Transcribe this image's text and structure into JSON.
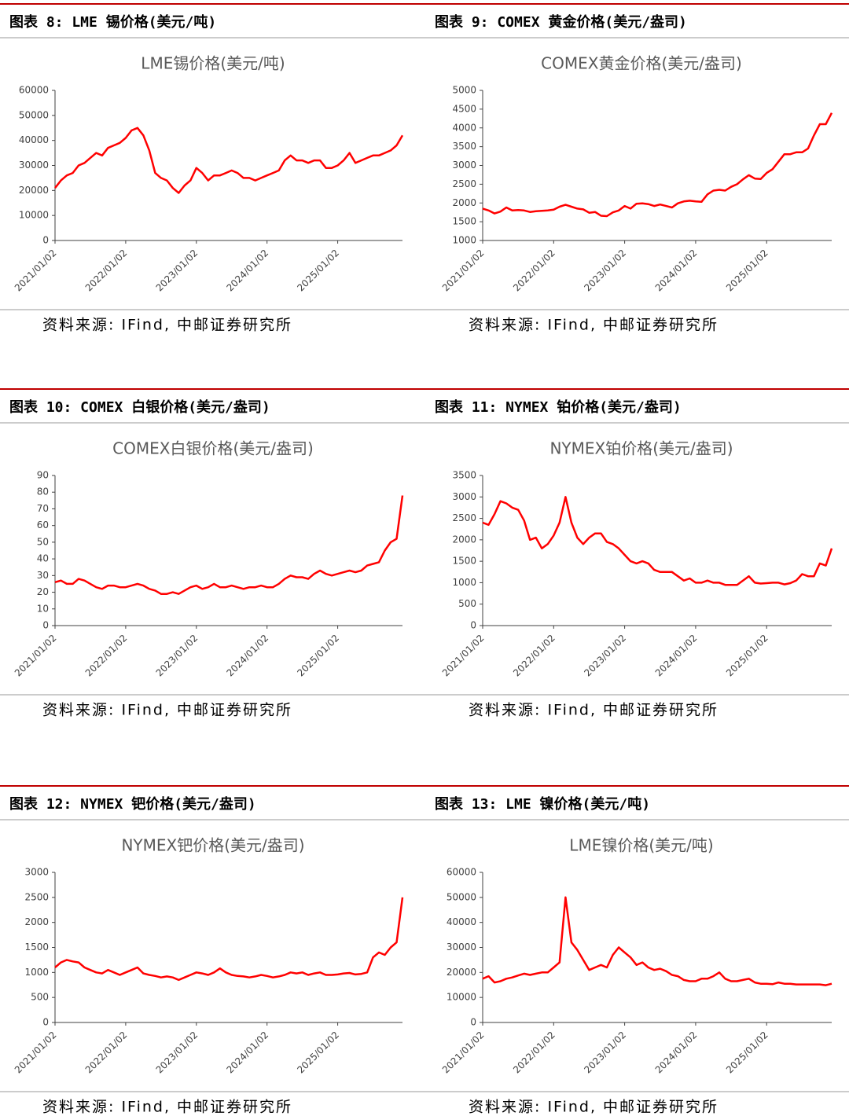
{
  "chart_data": [
    {
      "type": "line",
      "heading": "图表 8: LME 锡价格(美元/吨)",
      "title": "LME锡价格(美元/吨)",
      "source": "资料来源: IFind, 中邮证券研究所",
      "color": "#ff0000",
      "x": [
        "2021-01",
        "2021-02",
        "2021-03",
        "2021-04",
        "2021-05",
        "2021-06",
        "2021-07",
        "2021-08",
        "2021-09",
        "2021-10",
        "2021-11",
        "2021-12",
        "2022-01",
        "2022-02",
        "2022-03",
        "2022-04",
        "2022-05",
        "2022-06",
        "2022-07",
        "2022-08",
        "2022-09",
        "2022-10",
        "2022-11",
        "2022-12",
        "2023-01",
        "2023-02",
        "2023-03",
        "2023-04",
        "2023-05",
        "2023-06",
        "2023-07",
        "2023-08",
        "2023-09",
        "2023-10",
        "2023-11",
        "2023-12",
        "2024-01",
        "2024-02",
        "2024-03",
        "2024-04",
        "2024-05",
        "2024-06",
        "2024-07",
        "2024-08",
        "2024-09",
        "2024-10",
        "2024-11",
        "2024-12",
        "2025-01",
        "2025-02",
        "2025-03",
        "2025-04",
        "2025-05",
        "2025-06",
        "2025-07",
        "2025-08",
        "2025-09",
        "2025-10",
        "2025-11",
        "2025-12"
      ],
      "values": [
        21000,
        24000,
        26000,
        27000,
        30000,
        31000,
        33000,
        35000,
        34000,
        37000,
        38000,
        39000,
        41000,
        44000,
        45000,
        42000,
        36000,
        27000,
        25000,
        24000,
        21000,
        19000,
        22000,
        24000,
        29000,
        27000,
        24000,
        26000,
        26000,
        27000,
        28000,
        27000,
        25000,
        25000,
        24000,
        25000,
        26000,
        27000,
        28000,
        32000,
        34000,
        32000,
        32000,
        31000,
        32000,
        32000,
        29000,
        29000,
        30000,
        32000,
        35000,
        31000,
        32000,
        33000,
        34000,
        34000,
        35000,
        36000,
        38000,
        42000
      ],
      "xlim": [
        "2021-01",
        "2025-12"
      ],
      "xticks": [
        {
          "value": "2021-01",
          "label": "2021/01/02"
        },
        {
          "value": "2022-01",
          "label": "2022/01/02"
        },
        {
          "value": "2023-01",
          "label": "2023/01/02"
        },
        {
          "value": "2024-01",
          "label": "2024/01/02"
        },
        {
          "value": "2025-01",
          "label": "2025/01/02"
        }
      ],
      "ylim": [
        0,
        60000
      ],
      "yticks": [
        0,
        10000,
        20000,
        30000,
        40000,
        50000,
        60000
      ]
    },
    {
      "type": "line",
      "heading": "图表 9: COMEX 黄金价格(美元/盎司)",
      "title": "COMEX黄金价格(美元/盎司)",
      "source": "资料来源: IFind, 中邮证券研究所",
      "color": "#ff0000",
      "x": [
        "2021-01",
        "2021-02",
        "2021-03",
        "2021-04",
        "2021-05",
        "2021-06",
        "2021-07",
        "2021-08",
        "2021-09",
        "2021-10",
        "2021-11",
        "2021-12",
        "2022-01",
        "2022-02",
        "2022-03",
        "2022-04",
        "2022-05",
        "2022-06",
        "2022-07",
        "2022-08",
        "2022-09",
        "2022-10",
        "2022-11",
        "2022-12",
        "2023-01",
        "2023-02",
        "2023-03",
        "2023-04",
        "2023-05",
        "2023-06",
        "2023-07",
        "2023-08",
        "2023-09",
        "2023-10",
        "2023-11",
        "2023-12",
        "2024-01",
        "2024-02",
        "2024-03",
        "2024-04",
        "2024-05",
        "2024-06",
        "2024-07",
        "2024-08",
        "2024-09",
        "2024-10",
        "2024-11",
        "2024-12",
        "2025-01",
        "2025-02",
        "2025-03",
        "2025-04",
        "2025-05",
        "2025-06",
        "2025-07",
        "2025-08",
        "2025-09",
        "2025-10",
        "2025-11",
        "2025-12"
      ],
      "values": [
        1850,
        1800,
        1720,
        1770,
        1880,
        1800,
        1810,
        1800,
        1760,
        1780,
        1790,
        1800,
        1820,
        1900,
        1950,
        1900,
        1850,
        1830,
        1740,
        1760,
        1660,
        1650,
        1750,
        1800,
        1920,
        1850,
        1980,
        1990,
        1970,
        1920,
        1960,
        1920,
        1880,
        1990,
        2040,
        2060,
        2040,
        2030,
        2230,
        2330,
        2350,
        2330,
        2430,
        2500,
        2630,
        2740,
        2650,
        2640,
        2800,
        2900,
        3100,
        3300,
        3300,
        3350,
        3350,
        3450,
        3800,
        4100,
        4100,
        4400
      ],
      "xlim": [
        "2021-01",
        "2025-12"
      ],
      "xticks": [
        {
          "value": "2021-01",
          "label": "2021/01/02"
        },
        {
          "value": "2022-01",
          "label": "2022/01/02"
        },
        {
          "value": "2023-01",
          "label": "2023/01/02"
        },
        {
          "value": "2024-01",
          "label": "2024/01/02"
        },
        {
          "value": "2025-01",
          "label": "2025/01/02"
        }
      ],
      "ylim": [
        1000,
        5000
      ],
      "yticks": [
        1000,
        1500,
        2000,
        2500,
        3000,
        3500,
        4000,
        4500,
        5000
      ]
    },
    {
      "type": "line",
      "heading": "图表 10: COMEX 白银价格(美元/盎司)",
      "title": "COMEX白银价格(美元/盎司)",
      "source": "资料来源: IFind, 中邮证券研究所",
      "color": "#ff0000",
      "x": [
        "2021-01",
        "2021-02",
        "2021-03",
        "2021-04",
        "2021-05",
        "2021-06",
        "2021-07",
        "2021-08",
        "2021-09",
        "2021-10",
        "2021-11",
        "2021-12",
        "2022-01",
        "2022-02",
        "2022-03",
        "2022-04",
        "2022-05",
        "2022-06",
        "2022-07",
        "2022-08",
        "2022-09",
        "2022-10",
        "2022-11",
        "2022-12",
        "2023-01",
        "2023-02",
        "2023-03",
        "2023-04",
        "2023-05",
        "2023-06",
        "2023-07",
        "2023-08",
        "2023-09",
        "2023-10",
        "2023-11",
        "2023-12",
        "2024-01",
        "2024-02",
        "2024-03",
        "2024-04",
        "2024-05",
        "2024-06",
        "2024-07",
        "2024-08",
        "2024-09",
        "2024-10",
        "2024-11",
        "2024-12",
        "2025-01",
        "2025-02",
        "2025-03",
        "2025-04",
        "2025-05",
        "2025-06",
        "2025-07",
        "2025-08",
        "2025-09",
        "2025-10",
        "2025-11",
        "2025-12"
      ],
      "values": [
        26,
        27,
        25,
        25,
        28,
        27,
        25,
        23,
        22,
        24,
        24,
        23,
        23,
        24,
        25,
        24,
        22,
        21,
        19,
        19,
        20,
        19,
        21,
        23,
        24,
        22,
        23,
        25,
        23,
        23,
        24,
        23,
        22,
        23,
        23,
        24,
        23,
        23,
        25,
        28,
        30,
        29,
        29,
        28,
        31,
        33,
        31,
        30,
        31,
        32,
        33,
        32,
        33,
        36,
        37,
        38,
        45,
        50,
        52,
        78
      ],
      "xlim": [
        "2021-01",
        "2025-12"
      ],
      "xticks": [
        {
          "value": "2021-01",
          "label": "2021/01/02"
        },
        {
          "value": "2022-01",
          "label": "2022/01/02"
        },
        {
          "value": "2023-01",
          "label": "2023/01/02"
        },
        {
          "value": "2024-01",
          "label": "2024/01/02"
        },
        {
          "value": "2025-01",
          "label": "2025/01/02"
        }
      ],
      "ylim": [
        0,
        90
      ],
      "yticks": [
        0,
        10,
        20,
        30,
        40,
        50,
        60,
        70,
        80,
        90
      ]
    },
    {
      "type": "line",
      "heading": "图表 11: NYMEX 铂价格(美元/盎司)",
      "title": "NYMEX铂价格(美元/盎司)",
      "source": "资料来源: IFind, 中邮证券研究所",
      "color": "#ff0000",
      "x": [
        "2021-01",
        "2021-02",
        "2021-03",
        "2021-04",
        "2021-05",
        "2021-06",
        "2021-07",
        "2021-08",
        "2021-09",
        "2021-10",
        "2021-11",
        "2021-12",
        "2022-01",
        "2022-02",
        "2022-03",
        "2022-04",
        "2022-05",
        "2022-06",
        "2022-07",
        "2022-08",
        "2022-09",
        "2022-10",
        "2022-11",
        "2022-12",
        "2023-01",
        "2023-02",
        "2023-03",
        "2023-04",
        "2023-05",
        "2023-06",
        "2023-07",
        "2023-08",
        "2023-09",
        "2023-10",
        "2023-11",
        "2023-12",
        "2024-01",
        "2024-02",
        "2024-03",
        "2024-04",
        "2024-05",
        "2024-06",
        "2024-07",
        "2024-08",
        "2024-09",
        "2024-10",
        "2024-11",
        "2024-12",
        "2025-01",
        "2025-02",
        "2025-03",
        "2025-04",
        "2025-05",
        "2025-06",
        "2025-07",
        "2025-08",
        "2025-09",
        "2025-10",
        "2025-11",
        "2025-12"
      ],
      "values": [
        2400,
        2350,
        2600,
        2900,
        2850,
        2750,
        2700,
        2450,
        2000,
        2050,
        1800,
        1900,
        2100,
        2400,
        3000,
        2400,
        2050,
        1900,
        2050,
        2150,
        2150,
        1950,
        1900,
        1800,
        1650,
        1500,
        1450,
        1500,
        1450,
        1300,
        1250,
        1250,
        1250,
        1150,
        1050,
        1100,
        1000,
        1000,
        1050,
        1000,
        1000,
        950,
        950,
        950,
        1050,
        1150,
        1000,
        980,
        990,
        1000,
        1000,
        960,
        990,
        1050,
        1200,
        1150,
        1150,
        1450,
        1400,
        1800
      ],
      "xlim": [
        "2021-01",
        "2025-12"
      ],
      "xticks": [
        {
          "value": "2021-01",
          "label": "2021/01/02"
        },
        {
          "value": "2022-01",
          "label": "2022/01/02"
        },
        {
          "value": "2023-01",
          "label": "2023/01/02"
        },
        {
          "value": "2024-01",
          "label": "2024/01/02"
        },
        {
          "value": "2025-01",
          "label": "2025/01/02"
        }
      ],
      "ylim": [
        0,
        3500
      ],
      "yticks": [
        0,
        500,
        1000,
        1500,
        2000,
        2500,
        3000,
        3500
      ]
    },
    {
      "type": "line",
      "heading": "图表 12: NYMEX 钯价格(美元/盎司)",
      "title": "NYMEX钯价格(美元/盎司)",
      "source": "资料来源: IFind, 中邮证券研究所",
      "color": "#ff0000",
      "x": [
        "2021-01",
        "2021-02",
        "2021-03",
        "2021-04",
        "2021-05",
        "2021-06",
        "2021-07",
        "2021-08",
        "2021-09",
        "2021-10",
        "2021-11",
        "2021-12",
        "2022-01",
        "2022-02",
        "2022-03",
        "2022-04",
        "2022-05",
        "2022-06",
        "2022-07",
        "2022-08",
        "2022-09",
        "2022-10",
        "2022-11",
        "2022-12",
        "2023-01",
        "2023-02",
        "2023-03",
        "2023-04",
        "2023-05",
        "2023-06",
        "2023-07",
        "2023-08",
        "2023-09",
        "2023-10",
        "2023-11",
        "2023-12",
        "2024-01",
        "2024-02",
        "2024-03",
        "2024-04",
        "2024-05",
        "2024-06",
        "2024-07",
        "2024-08",
        "2024-09",
        "2024-10",
        "2024-11",
        "2024-12",
        "2025-01",
        "2025-02",
        "2025-03",
        "2025-04",
        "2025-05",
        "2025-06",
        "2025-07",
        "2025-08",
        "2025-09",
        "2025-10",
        "2025-11",
        "2025-12"
      ],
      "values": [
        1100,
        1200,
        1250,
        1220,
        1200,
        1100,
        1050,
        1000,
        980,
        1050,
        1000,
        950,
        1000,
        1050,
        1100,
        980,
        950,
        930,
        900,
        920,
        900,
        850,
        900,
        950,
        1000,
        980,
        950,
        1000,
        1080,
        1000,
        950,
        930,
        920,
        900,
        920,
        950,
        930,
        900,
        920,
        950,
        1000,
        980,
        1000,
        950,
        980,
        1000,
        950,
        950,
        960,
        980,
        990,
        960,
        970,
        1000,
        1300,
        1400,
        1350,
        1500,
        1600,
        2500
      ],
      "xlim": [
        "2021-01",
        "2025-12"
      ],
      "xticks": [
        {
          "value": "2021-01",
          "label": "2021/01/02"
        },
        {
          "value": "2022-01",
          "label": "2022/01/02"
        },
        {
          "value": "2023-01",
          "label": "2023/01/02"
        },
        {
          "value": "2024-01",
          "label": "2024/01/02"
        },
        {
          "value": "2025-01",
          "label": "2025/01/02"
        }
      ],
      "ylim": [
        0,
        3000
      ],
      "yticks": [
        0,
        500,
        1000,
        1500,
        2000,
        2500,
        3000
      ]
    },
    {
      "type": "line",
      "heading": "图表 13: LME 镍价格(美元/吨)",
      "title": "LME镍价格(美元/吨)",
      "source": "资料来源: IFind, 中邮证券研究所",
      "color": "#ff0000",
      "x": [
        "2021-01",
        "2021-02",
        "2021-03",
        "2021-04",
        "2021-05",
        "2021-06",
        "2021-07",
        "2021-08",
        "2021-09",
        "2021-10",
        "2021-11",
        "2021-12",
        "2022-01",
        "2022-02",
        "2022-03",
        "2022-04",
        "2022-05",
        "2022-06",
        "2022-07",
        "2022-08",
        "2022-09",
        "2022-10",
        "2022-11",
        "2022-12",
        "2023-01",
        "2023-02",
        "2023-03",
        "2023-04",
        "2023-05",
        "2023-06",
        "2023-07",
        "2023-08",
        "2023-09",
        "2023-10",
        "2023-11",
        "2023-12",
        "2024-01",
        "2024-02",
        "2024-03",
        "2024-04",
        "2024-05",
        "2024-06",
        "2024-07",
        "2024-08",
        "2024-09",
        "2024-10",
        "2024-11",
        "2024-12",
        "2025-01",
        "2025-02",
        "2025-03",
        "2025-04",
        "2025-05",
        "2025-06",
        "2025-07",
        "2025-08",
        "2025-09",
        "2025-10",
        "2025-11",
        "2025-12"
      ],
      "values": [
        17500,
        18500,
        16000,
        16500,
        17500,
        18000,
        18800,
        19500,
        19000,
        19500,
        20000,
        20000,
        22000,
        24000,
        50000,
        32000,
        29000,
        25000,
        21000,
        22000,
        23000,
        22000,
        27000,
        30000,
        28000,
        26000,
        23000,
        24000,
        22000,
        21000,
        21500,
        20500,
        19000,
        18500,
        17000,
        16500,
        16500,
        17500,
        17500,
        18500,
        20000,
        17500,
        16500,
        16500,
        17000,
        17500,
        16000,
        15500,
        15500,
        15300,
        16000,
        15500,
        15500,
        15200,
        15200,
        15200,
        15200,
        15200,
        14900,
        15500
      ],
      "xlim": [
        "2021-01",
        "2025-12"
      ],
      "xticks": [
        {
          "value": "2021-01",
          "label": "2021/01/02"
        },
        {
          "value": "2022-01",
          "label": "2022/01/02"
        },
        {
          "value": "2023-01",
          "label": "2023/01/02"
        },
        {
          "value": "2024-01",
          "label": "2024/01/02"
        },
        {
          "value": "2025-01",
          "label": "2025/01/02"
        }
      ],
      "ylim": [
        0,
        60000
      ],
      "yticks": [
        0,
        10000,
        20000,
        30000,
        40000,
        50000,
        60000
      ]
    }
  ]
}
